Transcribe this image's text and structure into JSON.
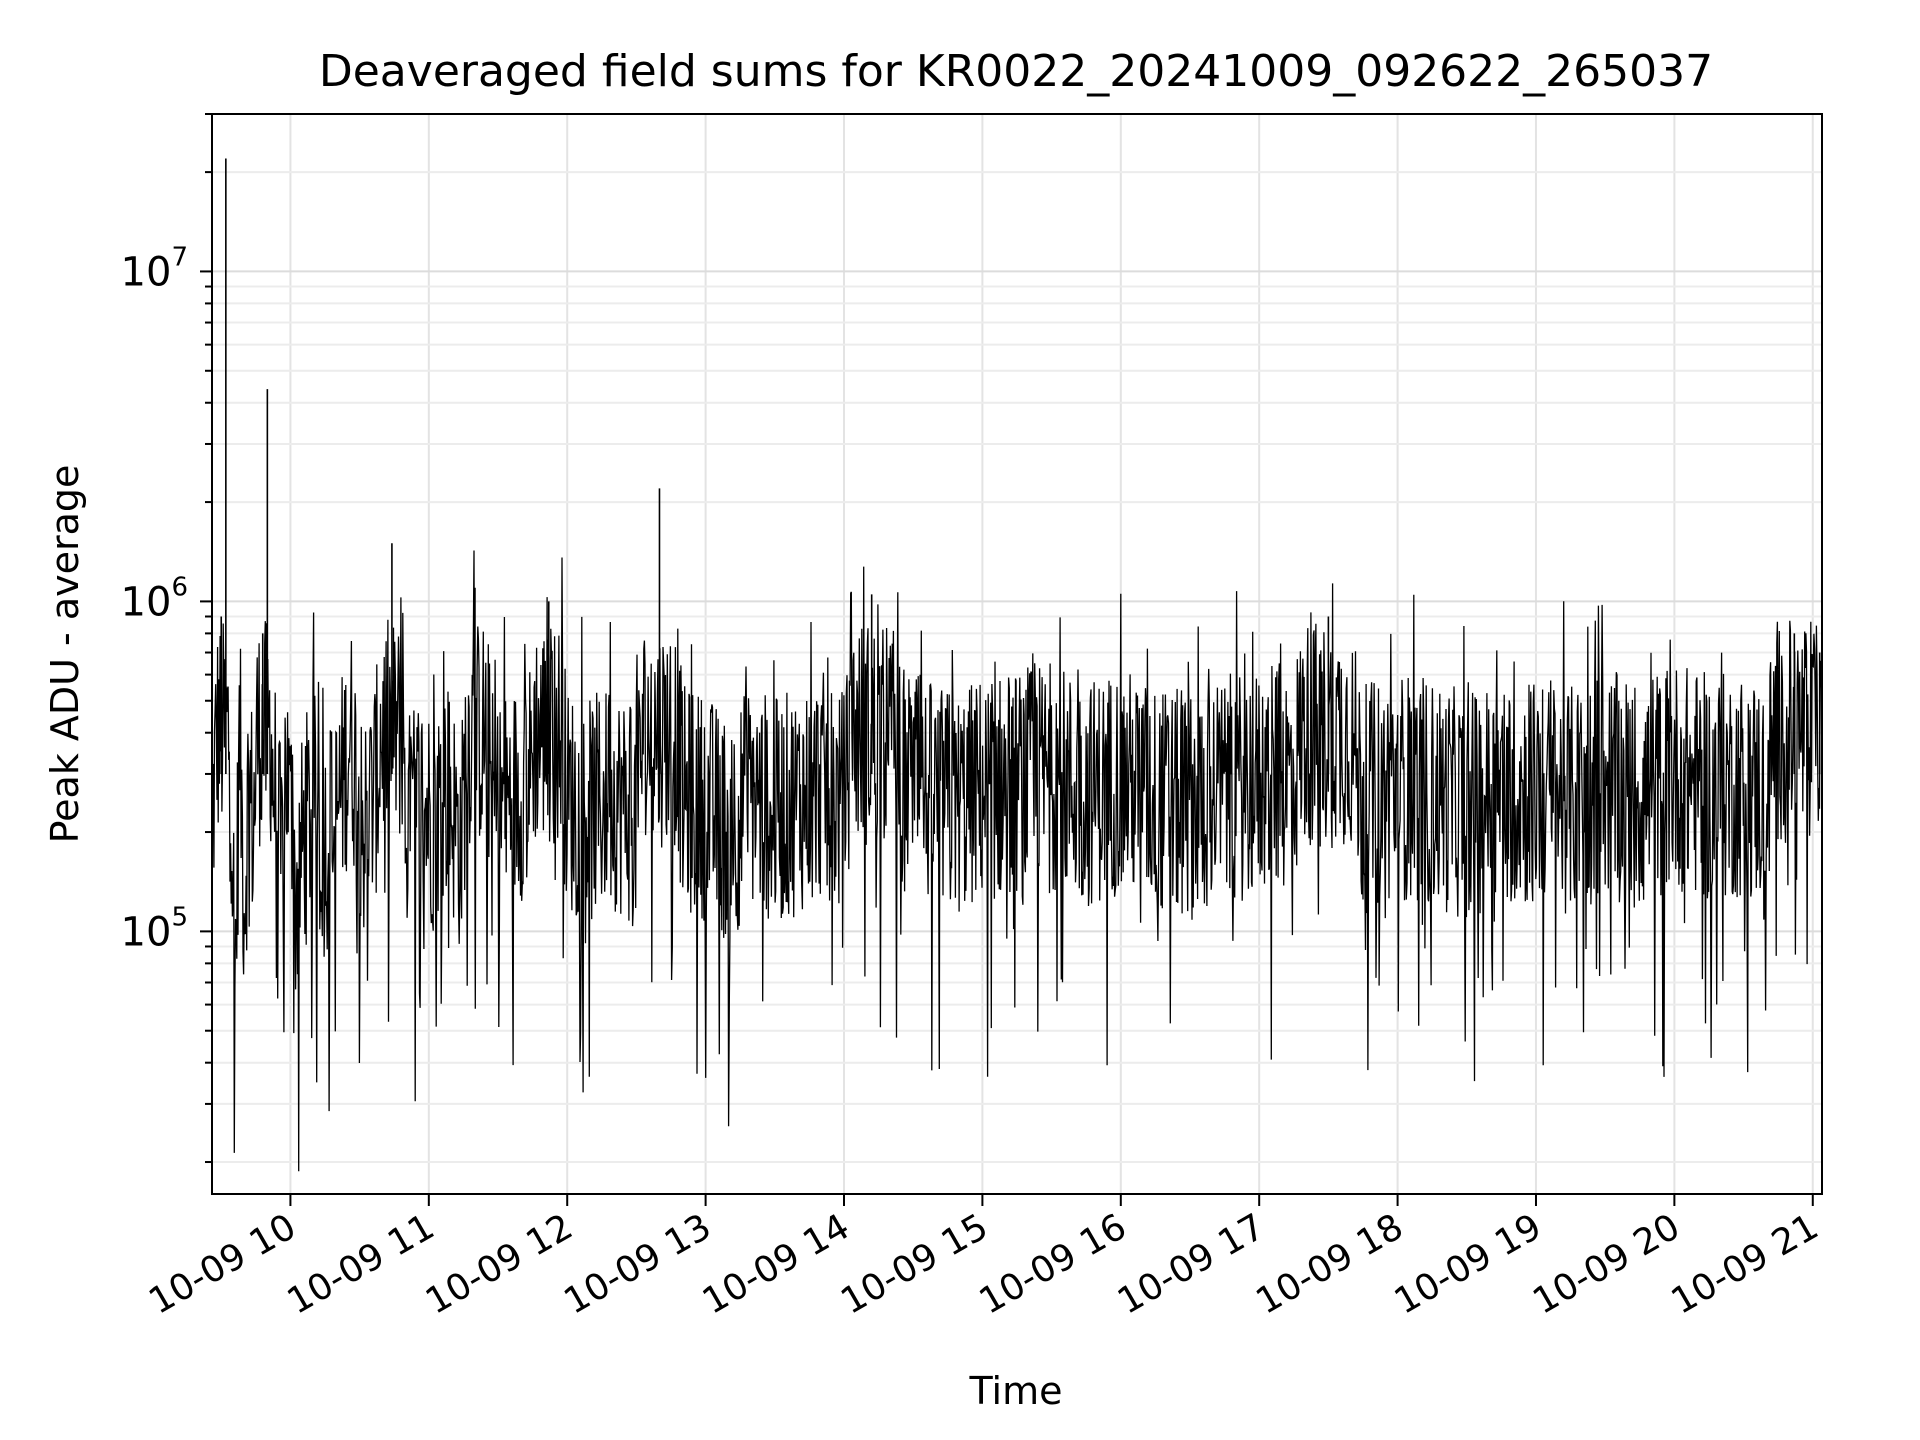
{
  "chart_data": {
    "type": "line",
    "title": "Deaveraged field sums for KR0022_20241009_092622_265037",
    "xlabel": "Time",
    "ylabel": "Peak ADU - average",
    "xlim": [
      "2024-10-09 09:26",
      "2024-10-09 21:04"
    ],
    "ylim": [
      16000,
      30000000
    ],
    "yscale": "log",
    "grid": true,
    "x_ticks": [
      "10-09 10",
      "10-09 11",
      "10-09 12",
      "10-09 13",
      "10-09 14",
      "10-09 15",
      "10-09 16",
      "10-09 17",
      "10-09 18",
      "10-09 19",
      "10-09 20",
      "10-09 21"
    ],
    "y_ticks": [
      {
        "value": 100000,
        "base": "10",
        "exp": "5"
      },
      {
        "value": 1000000,
        "base": "10",
        "exp": "6"
      },
      {
        "value": 10000000,
        "base": "10",
        "exp": "7"
      }
    ],
    "series": [
      {
        "color": "#000000",
        "x": [
          "2024-10-09 09:26",
          "2024-10-09 09:28",
          "2024-10-09 09:30",
          "2024-10-09 09:32",
          "2024-10-09 09:34",
          "2024-10-09 09:36",
          "2024-10-09 09:38",
          "2024-10-09 09:40",
          "2024-10-09 09:42",
          "2024-10-09 09:44",
          "2024-10-09 09:46",
          "2024-10-09 09:48",
          "2024-10-09 09:50",
          "2024-10-09 09:52",
          "2024-10-09 09:54",
          "2024-10-09 09:56",
          "2024-10-09 09:58",
          "2024-10-09 10:02",
          "2024-10-09 10:06",
          "2024-10-09 10:10",
          "2024-10-09 10:14",
          "2024-10-09 10:20",
          "2024-10-09 10:26",
          "2024-10-09 10:32",
          "2024-10-09 10:38",
          "2024-10-09 10:44",
          "2024-10-09 10:50",
          "2024-10-09 10:56",
          "2024-10-09 11:02",
          "2024-10-09 11:08",
          "2024-10-09 11:14",
          "2024-10-09 11:20",
          "2024-10-09 11:28",
          "2024-10-09 11:36",
          "2024-10-09 11:44",
          "2024-10-09 11:52",
          "2024-10-09 12:00",
          "2024-10-09 12:10",
          "2024-10-09 12:20",
          "2024-10-09 12:30",
          "2024-10-09 12:40",
          "2024-10-09 12:50",
          "2024-10-09 13:00",
          "2024-10-09 13:10",
          "2024-10-09 13:20",
          "2024-10-09 13:30",
          "2024-10-09 13:40",
          "2024-10-09 13:50",
          "2024-10-09 14:00",
          "2024-10-09 14:12",
          "2024-10-09 14:24",
          "2024-10-09 14:36",
          "2024-10-09 14:48",
          "2024-10-09 15:00",
          "2024-10-09 15:15",
          "2024-10-09 15:30",
          "2024-10-09 15:45",
          "2024-10-09 16:00",
          "2024-10-09 16:15",
          "2024-10-09 16:30",
          "2024-10-09 16:45",
          "2024-10-09 17:00",
          "2024-10-09 17:15",
          "2024-10-09 17:30",
          "2024-10-09 17:45",
          "2024-10-09 18:00",
          "2024-10-09 18:15",
          "2024-10-09 18:30",
          "2024-10-09 18:45",
          "2024-10-09 19:00",
          "2024-10-09 19:15",
          "2024-10-09 19:30",
          "2024-10-09 19:45",
          "2024-10-09 20:00",
          "2024-10-09 20:15",
          "2024-10-09 20:30",
          "2024-10-09 20:40",
          "2024-10-09 20:46",
          "2024-10-09 20:52",
          "2024-10-09 20:58",
          "2024-10-09 21:03"
        ],
        "y": [
          200000,
          400000,
          900000,
          22000000,
          350000,
          70000,
          400000,
          120000,
          300000,
          200000,
          500000,
          800000,
          4400000,
          300000,
          250000,
          150000,
          350000,
          120000,
          200000,
          250000,
          180000,
          220000,
          400000,
          200000,
          300000,
          1500000,
          200000,
          250000,
          220000,
          280000,
          180000,
          1100000,
          230000,
          250000,
          300000,
          1000000,
          250000,
          230000,
          260000,
          220000,
          2200000,
          250000,
          240000,
          200000,
          260000,
          230000,
          250000,
          280000,
          240000,
          1050000,
          300000,
          260000,
          240000,
          270000,
          280000,
          300000,
          260000,
          290000,
          250000,
          240000,
          270000,
          280000,
          300000,
          900000,
          250000,
          280000,
          260000,
          240000,
          270000,
          260000,
          250000,
          280000,
          260000,
          300000,
          270000,
          280000,
          260000,
          550000,
          800000,
          600000,
          700000
        ]
      }
    ]
  }
}
